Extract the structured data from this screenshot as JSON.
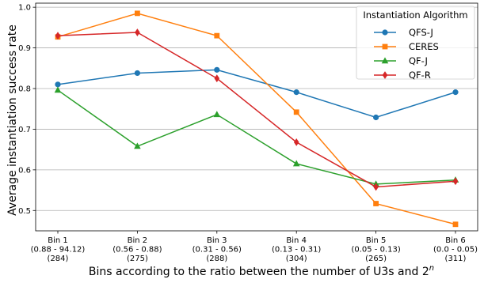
{
  "chart_data": {
    "type": "line",
    "xlabel": "Bins according to the ratio between the number of U3s and 2",
    "xlabel_superscript": "n",
    "ylabel": "Average instantiation success rate",
    "ylim": [
      0.45,
      1.01
    ],
    "yticks": [
      "0.5",
      "0.6",
      "0.7",
      "0.8",
      "0.9",
      "1.0"
    ],
    "grid": "horizontal",
    "legend_title": "Instantiation Algorithm",
    "legend_position": "top-right",
    "categories": [
      {
        "bin": "Bin 1",
        "range": "(0.88 - 94.12)",
        "count": "(284)"
      },
      {
        "bin": "Bin 2",
        "range": "(0.56 - 0.88)",
        "count": "(275)"
      },
      {
        "bin": "Bin 3",
        "range": "(0.31 - 0.56)",
        "count": "(288)"
      },
      {
        "bin": "Bin 4",
        "range": "(0.13 - 0.31)",
        "count": "(304)"
      },
      {
        "bin": "Bin 5",
        "range": "(0.05 - 0.13)",
        "count": "(265)"
      },
      {
        "bin": "Bin 6",
        "range": "(0.0 - 0.05)",
        "count": "(311)"
      }
    ],
    "series": [
      {
        "name": "QFS-J",
        "color": "#1f77b4",
        "marker": "circle",
        "values": [
          0.81,
          0.838,
          0.846,
          0.791,
          0.729,
          0.791
        ]
      },
      {
        "name": "CERES",
        "color": "#ff7f0e",
        "marker": "square",
        "values": [
          0.927,
          0.985,
          0.93,
          0.742,
          0.517,
          0.466
        ]
      },
      {
        "name": "QF-J",
        "color": "#2ca02c",
        "marker": "triangle",
        "values": [
          0.796,
          0.658,
          0.736,
          0.615,
          0.565,
          0.575
        ]
      },
      {
        "name": "QF-R",
        "color": "#d62728",
        "marker": "diamond",
        "values": [
          0.93,
          0.938,
          0.825,
          0.668,
          0.558,
          0.572
        ]
      }
    ]
  }
}
